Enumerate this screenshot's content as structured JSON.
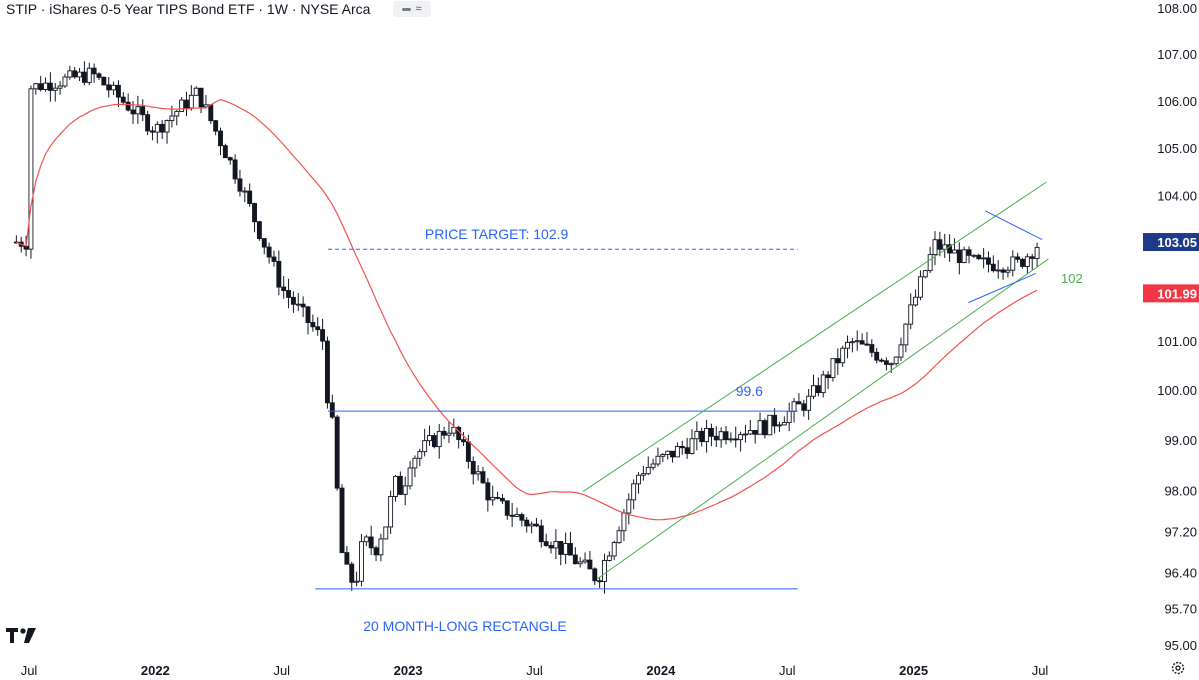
{
  "header": {
    "title": "STIP · iShares 0-5 Year TIPS Bond ETF · 1W · NYSE Arca",
    "badge_icon": "wave-icon"
  },
  "colors": {
    "up": "#131722",
    "down": "#131722",
    "ma": "#ef5350",
    "channel": "#4caf50",
    "level": "#2962ff",
    "triangle": "#2962ff",
    "last_price_bg": "#1e3a8a",
    "ma_price_bg": "#f23645"
  },
  "chart_data": {
    "type": "candlestick",
    "title": "STIP · iShares 0-5 Year TIPS Bond ETF · 1W · NYSE Arca",
    "x_ticks": [
      "Jul",
      "2022",
      "Jul",
      "2023",
      "Jul",
      "2024",
      "Jul",
      "2025",
      "Jul"
    ],
    "y_ticks": [
      "108.00",
      "107.00",
      "106.00",
      "105.00",
      "104.00",
      "103.00",
      "102.00",
      "101.00",
      "100.00",
      "99.00",
      "98.00",
      "97.20",
      "96.40",
      "95.70",
      "95.00"
    ],
    "y_scale": "log",
    "ylim": [
      94.8,
      108.2
    ],
    "last_price": "103.05",
    "ma_price": "101.99",
    "moving_average": "red line",
    "closes_key": [
      [
        "2021-07",
        106.3
      ],
      [
        "2021-10",
        106.6
      ],
      [
        "2022-01",
        105.4
      ],
      [
        "2022-03",
        106.2
      ],
      [
        "2022-05",
        104.3
      ],
      [
        "2022-07",
        102.1
      ],
      [
        "2022-09",
        101.0
      ],
      [
        "2022-10",
        96.1
      ],
      [
        "2022-12",
        97.5
      ],
      [
        "2023-01",
        98.6
      ],
      [
        "2023-03",
        99.3
      ],
      [
        "2023-05",
        97.8
      ],
      [
        "2023-07",
        97.3
      ],
      [
        "2023-10",
        96.3
      ],
      [
        "2023-12",
        98.4
      ],
      [
        "2024-03",
        99.1
      ],
      [
        "2024-06",
        99.3
      ],
      [
        "2024-08",
        99.8
      ],
      [
        "2024-10",
        101.0
      ],
      [
        "2024-12",
        100.6
      ],
      [
        "2025-02",
        103.0
      ],
      [
        "2025-04",
        102.6
      ],
      [
        "2025-06",
        102.6
      ],
      [
        "2025-07",
        103.05
      ]
    ],
    "annotations": {
      "price_target": {
        "label": "PRICE TARGET: 102.9",
        "value": 102.9
      },
      "breakout": {
        "label": "99.6",
        "value": 99.6
      },
      "rectangle_top": 99.6,
      "rectangle_bottom": 96.1,
      "rectangle_label": "20 MONTH-LONG RECTANGLE",
      "channel_label": "102",
      "triangle": "symmetrical"
    }
  }
}
